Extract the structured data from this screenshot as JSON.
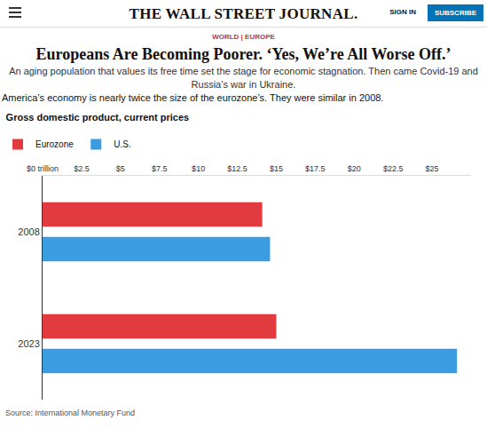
{
  "header": {
    "logo": "THE WALL STREET JOURNAL.",
    "sign_in": "SIGN IN",
    "subscribe": "SUBSCRIBE"
  },
  "section": "WORLD | EUROPE",
  "headline": "Europeans Are Becoming Poorer. ‘Yes, We’re All Worse Off.’",
  "subtitle": "An aging population that values its free time set the stage for economic stagnation. Then came Covid-19 and Russia’s war in Ukraine.",
  "description": "America’s economy is nearly twice the size of the eurozone’s. They were similar in 2008.",
  "source": "Source: International Monetary Fund",
  "chart_data": {
    "type": "bar",
    "title": "Gross domestic product, current prices",
    "orientation": "horizontal",
    "categories": [
      "2008",
      "2023"
    ],
    "series": [
      {
        "name": "Eurozone",
        "color": "#e23b3f",
        "values": [
          14.1,
          15.0
        ]
      },
      {
        "name": "U.S.",
        "color": "#3a9de2",
        "values": [
          14.6,
          26.6
        ]
      }
    ],
    "xlim": [
      0,
      27.5
    ],
    "xticks": [
      {
        "value": 0,
        "label": "$0 trillion"
      },
      {
        "value": 2.5,
        "label": "$2.5"
      },
      {
        "value": 5,
        "label": "$5"
      },
      {
        "value": 7.5,
        "label": "$7.5"
      },
      {
        "value": 10,
        "label": "$10"
      },
      {
        "value": 12.5,
        "label": "$12.5"
      },
      {
        "value": 15,
        "label": "$15"
      },
      {
        "value": 17.5,
        "label": "$17.5"
      },
      {
        "value": 20,
        "label": "$20"
      },
      {
        "value": 22.5,
        "label": "$22.5"
      },
      {
        "value": 25,
        "label": "$25"
      }
    ],
    "grid": false,
    "legend": "top-left"
  }
}
